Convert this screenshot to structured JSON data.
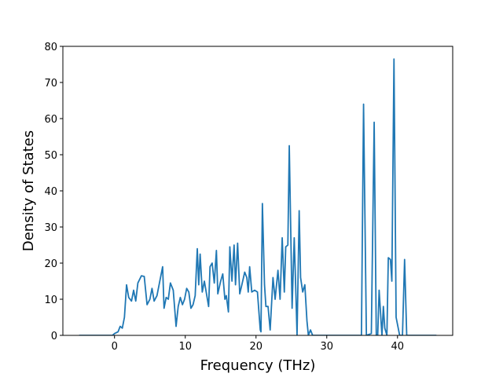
{
  "chart_data": {
    "type": "line",
    "x_label": "Frequency (THz)",
    "y_label": "Density of States",
    "x": [
      -5,
      -0.3,
      0,
      0.5,
      0.8,
      1.1,
      1.4,
      1.7,
      2,
      2.4,
      2.7,
      3,
      3.3,
      3.8,
      4.2,
      4.6,
      5,
      5.3,
      5.6,
      6,
      6.4,
      6.8,
      7,
      7.3,
      7.6,
      7.9,
      8.3,
      8.7,
      9,
      9.3,
      9.6,
      9.9,
      10.2,
      10.5,
      10.8,
      11.1,
      11.4,
      11.7,
      11.9,
      12.1,
      12.4,
      12.7,
      13,
      13.3,
      13.5,
      13.8,
      14.1,
      14.4,
      14.6,
      15,
      15.3,
      15.6,
      15.8,
      16.1,
      16.3,
      16.6,
      16.9,
      17.1,
      17.4,
      17.7,
      18,
      18.4,
      18.7,
      18.9,
      19.1,
      19.4,
      19.8,
      20.2,
      20.6,
      20.7,
      20.9,
      21.2,
      21.4,
      21.7,
      22,
      22.4,
      22.7,
      23.1,
      23.4,
      23.7,
      24,
      24.2,
      24.5,
      24.7,
      24.9,
      25.1,
      25.4,
      25.6,
      25.8,
      26.1,
      26.3,
      26.6,
      26.9,
      27.2,
      27.4,
      27.7,
      28,
      34.9,
      35.2,
      35.6,
      36.3,
      36.7,
      37,
      37.2,
      37.4,
      37.8,
      38,
      38.2,
      38.5,
      38.7,
      39,
      39.2,
      39.5,
      39.8,
      40.3,
      40.7,
      41,
      41.3,
      45.5
    ],
    "series": [
      {
        "color": "#1f77b4",
        "values": [
          0,
          0,
          0.5,
          1,
          2.5,
          2,
          5,
          14,
          10.5,
          9.5,
          12.5,
          9.5,
          14.5,
          16.5,
          16.3,
          8.5,
          10,
          13,
          9.5,
          11,
          15,
          19,
          7.5,
          10.5,
          10,
          14.5,
          12.5,
          2.5,
          8,
          10.5,
          8.5,
          10,
          13,
          12,
          7.5,
          8.5,
          11,
          24,
          14,
          22.5,
          12,
          15,
          11.5,
          8,
          19,
          20,
          14.5,
          23.5,
          11.5,
          15,
          17,
          10,
          11,
          6.5,
          24.5,
          15,
          25,
          14,
          25.5,
          11.5,
          14,
          17.5,
          16,
          12,
          19,
          12,
          12.5,
          12,
          1.5,
          1,
          36.5,
          14,
          8,
          8,
          1.5,
          16,
          10,
          18,
          10,
          27,
          12,
          24.5,
          25,
          52.5,
          30,
          7.5,
          27,
          14,
          0,
          34.5,
          16,
          12,
          14,
          4,
          0,
          1.5,
          0,
          0,
          64,
          0,
          0.5,
          59,
          0,
          0,
          12.5,
          0,
          8,
          2,
          0,
          21.5,
          21,
          15,
          76.5,
          5,
          0,
          0,
          21,
          0,
          0
        ]
      }
    ],
    "xlim": [
      -7.3,
      47.8
    ],
    "ylim": [
      0,
      80
    ],
    "xticks": [
      0,
      10,
      20,
      30,
      40
    ],
    "yticks": [
      0,
      10,
      20,
      30,
      40,
      50,
      60,
      70,
      80
    ]
  }
}
